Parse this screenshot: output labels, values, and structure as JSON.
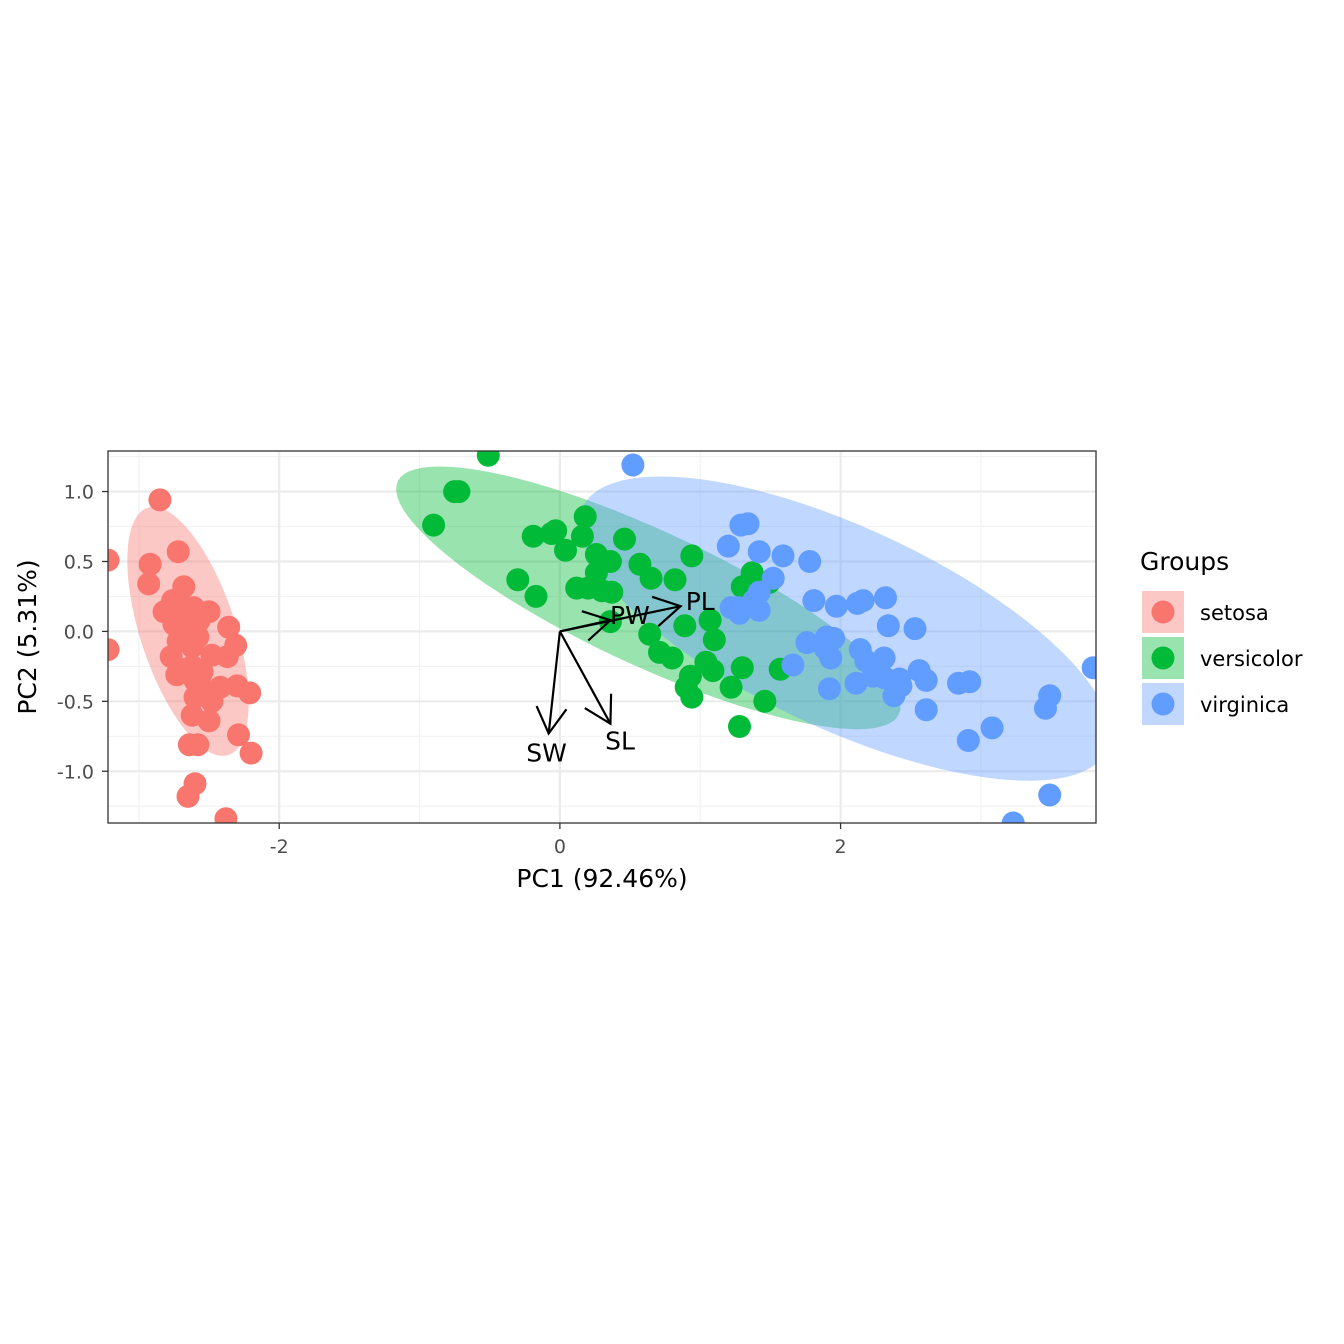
{
  "chart_data": {
    "type": "scatter",
    "xlabel": "PC1 (92.46%)",
    "ylabel": "PC2 (5.31%)",
    "xlim": [
      -3.22,
      3.82
    ],
    "ylim": [
      -1.37,
      1.29
    ],
    "x_ticks": [
      -2,
      0,
      2
    ],
    "y_ticks": [
      1.0,
      0.5,
      0.0,
      -0.5,
      -1.0
    ],
    "x_tick_labels": [
      "-2",
      "0",
      "2"
    ],
    "y_tick_labels": [
      "1.0",
      "0.5",
      "0.0",
      "-0.5",
      "-1.0"
    ],
    "grid": true,
    "legend": {
      "title": "Groups",
      "placement": "right"
    },
    "series": [
      {
        "name": "setosa",
        "color": "#F8766D",
        "ellipse": {
          "cx": -2.65,
          "cy": 0.0,
          "a": 0.93,
          "b": 0.34,
          "angle_deg": -72
        },
        "points": [
          [
            -3.22,
            0.51
          ],
          [
            -3.22,
            -0.13
          ],
          [
            -2.85,
            0.94
          ],
          [
            -2.72,
            0.57
          ],
          [
            -2.92,
            0.48
          ],
          [
            -2.93,
            0.34
          ],
          [
            -2.76,
            0.22
          ],
          [
            -2.82,
            0.14
          ],
          [
            -2.68,
            0.32
          ],
          [
            -2.7,
            0.19
          ],
          [
            -2.61,
            0.17
          ],
          [
            -2.5,
            0.14
          ],
          [
            -2.75,
            0.05
          ],
          [
            -2.69,
            0.12
          ],
          [
            -2.62,
            0.02
          ],
          [
            -2.57,
            0.08
          ],
          [
            -2.72,
            -0.07
          ],
          [
            -2.65,
            -0.02
          ],
          [
            -2.58,
            -0.04
          ],
          [
            -2.36,
            0.03
          ],
          [
            -2.31,
            -0.1
          ],
          [
            -2.62,
            -0.11
          ],
          [
            -2.48,
            -0.17
          ],
          [
            -2.37,
            -0.18
          ],
          [
            -2.77,
            -0.18
          ],
          [
            -2.7,
            -0.27
          ],
          [
            -2.62,
            -0.25
          ],
          [
            -2.73,
            -0.31
          ],
          [
            -2.55,
            -0.29
          ],
          [
            -2.6,
            -0.35
          ],
          [
            -2.42,
            -0.4
          ],
          [
            -2.3,
            -0.39
          ],
          [
            -2.21,
            -0.44
          ],
          [
            -2.53,
            -0.42
          ],
          [
            -2.48,
            -0.5
          ],
          [
            -2.6,
            -0.47
          ],
          [
            -2.62,
            -0.6
          ],
          [
            -2.5,
            -0.64
          ],
          [
            -2.29,
            -0.74
          ],
          [
            -2.2,
            -0.87
          ],
          [
            -2.64,
            -0.81
          ],
          [
            -2.58,
            -0.81
          ],
          [
            -2.6,
            -1.09
          ],
          [
            -2.65,
            -1.18
          ],
          [
            -2.38,
            -1.34
          ]
        ]
      },
      {
        "name": "versicolor",
        "color": "#00BA38",
        "ellipse": {
          "cx": 0.63,
          "cy": 0.24,
          "a": 1.97,
          "b": 0.48,
          "angle_deg": -25
        },
        "points": [
          [
            -0.51,
            1.26
          ],
          [
            -0.72,
            1.0
          ],
          [
            -0.75,
            1.0
          ],
          [
            -0.9,
            0.76
          ],
          [
            -0.19,
            0.68
          ],
          [
            -0.06,
            0.7
          ],
          [
            -0.03,
            0.72
          ],
          [
            0.18,
            0.82
          ],
          [
            0.16,
            0.68
          ],
          [
            0.04,
            0.58
          ],
          [
            0.26,
            0.55
          ],
          [
            0.46,
            0.66
          ],
          [
            0.36,
            0.5
          ],
          [
            0.26,
            0.42
          ],
          [
            0.2,
            0.31
          ],
          [
            0.12,
            0.31
          ],
          [
            0.3,
            0.29
          ],
          [
            0.37,
            0.28
          ],
          [
            -0.3,
            0.37
          ],
          [
            -0.17,
            0.25
          ],
          [
            0.57,
            0.48
          ],
          [
            0.65,
            0.38
          ],
          [
            0.82,
            0.37
          ],
          [
            0.94,
            0.54
          ],
          [
            0.36,
            0.07
          ],
          [
            0.64,
            -0.02
          ],
          [
            0.89,
            0.04
          ],
          [
            1.07,
            0.08
          ],
          [
            1.1,
            -0.06
          ],
          [
            0.71,
            -0.15
          ],
          [
            0.8,
            -0.19
          ],
          [
            0.93,
            -0.32
          ],
          [
            1.04,
            -0.22
          ],
          [
            1.09,
            -0.28
          ],
          [
            0.9,
            -0.4
          ],
          [
            0.94,
            -0.47
          ],
          [
            1.22,
            -0.4
          ],
          [
            1.3,
            -0.26
          ],
          [
            1.46,
            -0.5
          ],
          [
            1.28,
            -0.68
          ],
          [
            1.3,
            0.32
          ],
          [
            1.37,
            0.42
          ],
          [
            1.49,
            0.35
          ],
          [
            1.57,
            -0.27
          ]
        ]
      },
      {
        "name": "virginica",
        "color": "#619CFF",
        "ellipse": {
          "cx": 2.03,
          "cy": 0.02,
          "a": 2.06,
          "b": 0.72,
          "angle_deg": -25
        },
        "points": [
          [
            0.52,
            1.19
          ],
          [
            1.29,
            0.76
          ],
          [
            1.34,
            0.77
          ],
          [
            1.2,
            0.61
          ],
          [
            1.42,
            0.57
          ],
          [
            1.59,
            0.54
          ],
          [
            1.78,
            0.5
          ],
          [
            1.52,
            0.38
          ],
          [
            1.42,
            0.28
          ],
          [
            1.42,
            0.15
          ],
          [
            1.28,
            0.13
          ],
          [
            1.27,
            0.17
          ],
          [
            1.22,
            0.17
          ],
          [
            1.38,
            0.22
          ],
          [
            1.81,
            0.22
          ],
          [
            1.97,
            0.18
          ],
          [
            2.12,
            0.2
          ],
          [
            2.16,
            0.22
          ],
          [
            2.32,
            0.24
          ],
          [
            2.34,
            0.04
          ],
          [
            2.53,
            0.02
          ],
          [
            1.76,
            -0.08
          ],
          [
            1.9,
            -0.04
          ],
          [
            1.95,
            -0.05
          ],
          [
            1.66,
            -0.24
          ],
          [
            1.89,
            -0.12
          ],
          [
            1.93,
            -0.19
          ],
          [
            2.14,
            -0.13
          ],
          [
            2.18,
            -0.21
          ],
          [
            2.31,
            -0.19
          ],
          [
            2.23,
            -0.32
          ],
          [
            2.31,
            -0.33
          ],
          [
            2.42,
            -0.34
          ],
          [
            2.56,
            -0.28
          ],
          [
            2.61,
            -0.35
          ],
          [
            2.43,
            -0.39
          ],
          [
            2.11,
            -0.37
          ],
          [
            1.92,
            -0.41
          ],
          [
            2.38,
            -0.46
          ],
          [
            2.61,
            -0.56
          ],
          [
            2.84,
            -0.37
          ],
          [
            2.92,
            -0.36
          ],
          [
            3.08,
            -0.69
          ],
          [
            2.91,
            -0.78
          ],
          [
            3.46,
            -0.55
          ],
          [
            3.49,
            -0.46
          ],
          [
            3.49,
            -1.17
          ],
          [
            3.23,
            -1.37
          ],
          [
            3.8,
            -0.26
          ]
        ]
      }
    ],
    "loadings": [
      {
        "label": "SL",
        "x": 0.36,
        "y": -0.66
      },
      {
        "label": "SW",
        "x": -0.08,
        "y": -0.73
      },
      {
        "label": "PL",
        "x": 0.86,
        "y": 0.18
      },
      {
        "label": "PW",
        "x": 0.36,
        "y": 0.08
      }
    ]
  }
}
